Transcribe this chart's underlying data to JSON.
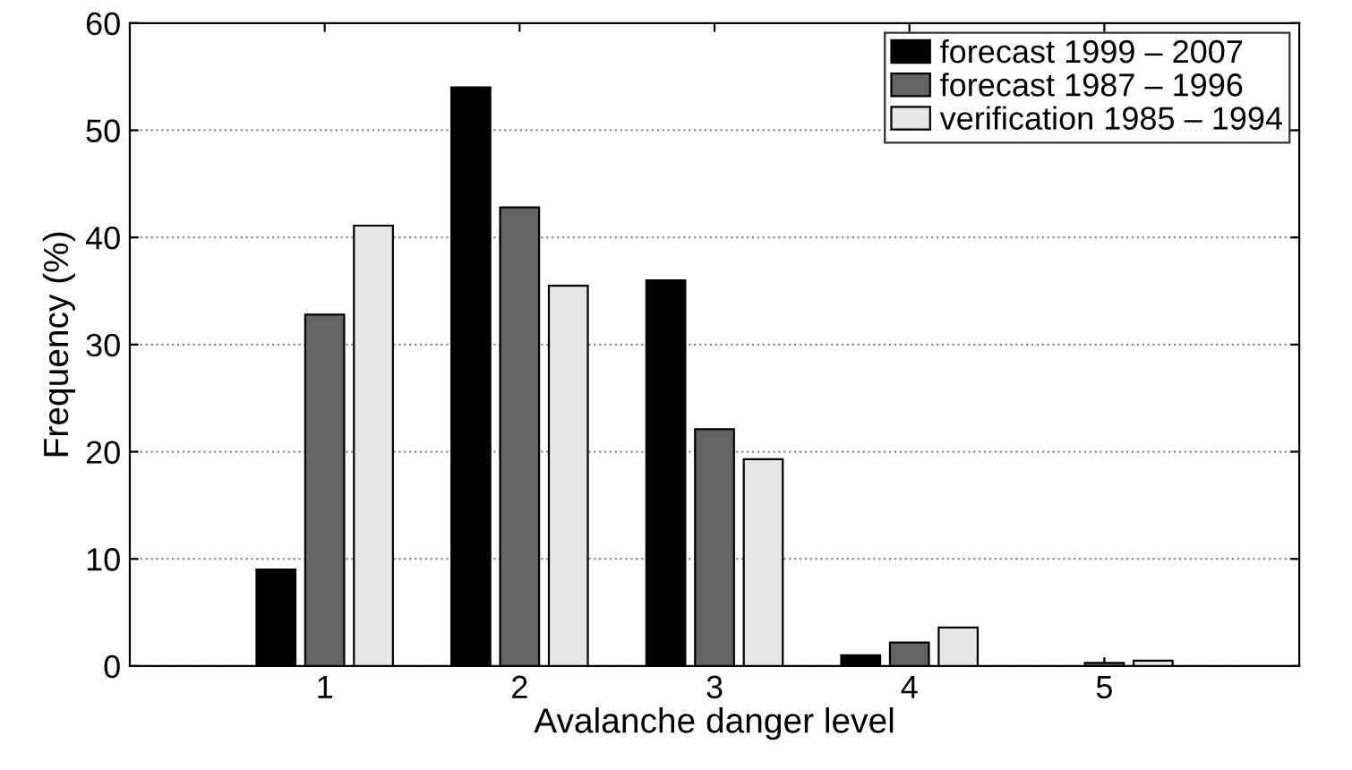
{
  "chart_data": {
    "type": "bar",
    "xlabel": "Avalanche danger level",
    "ylabel": "Frequency (%)",
    "categories": [
      "1",
      "2",
      "3",
      "4",
      "5"
    ],
    "series": [
      {
        "name": "forecast 1999 – 2007",
        "color": "#000000",
        "values": [
          9,
          54,
          36,
          1,
          null
        ]
      },
      {
        "name": "forecast 1987 – 1996",
        "color": "#646464",
        "values": [
          32.8,
          42.8,
          22.1,
          2.2,
          0.3
        ]
      },
      {
        "name": "verification 1985 – 1994",
        "color": "#e6e6e6",
        "values": [
          41.1,
          35.5,
          19.3,
          3.6,
          0.5
        ]
      }
    ],
    "ylim": [
      0,
      60
    ],
    "yticks": [
      0,
      10,
      20,
      30,
      40,
      50,
      60
    ],
    "grid": "y",
    "legend": "top right"
  }
}
